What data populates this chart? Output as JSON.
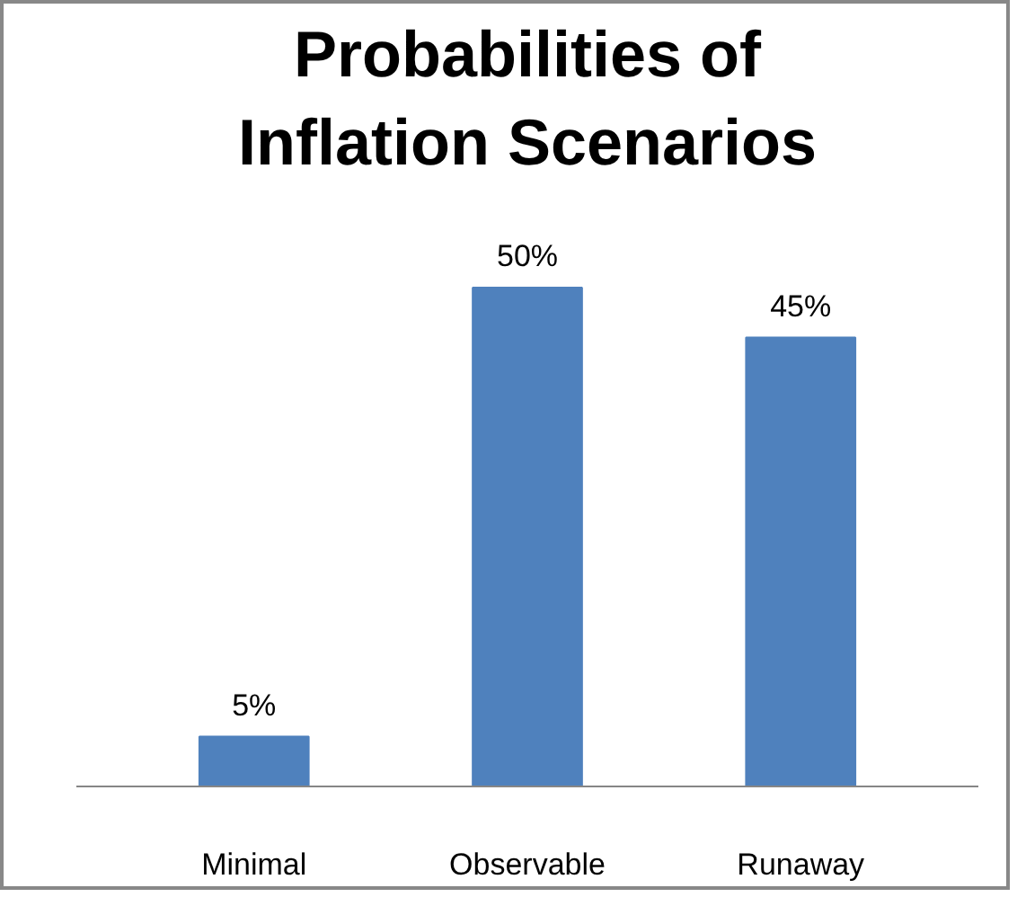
{
  "chart_data": {
    "type": "bar",
    "title": "Probabilities of\nInflation Scenarios",
    "categories": [
      "Minimal",
      "Observable",
      "Runaway"
    ],
    "values": [
      5,
      50,
      45
    ],
    "color": "#4f81bd",
    "value_labels": [
      "5%",
      "50%",
      "45%"
    ],
    "grid": false
  }
}
